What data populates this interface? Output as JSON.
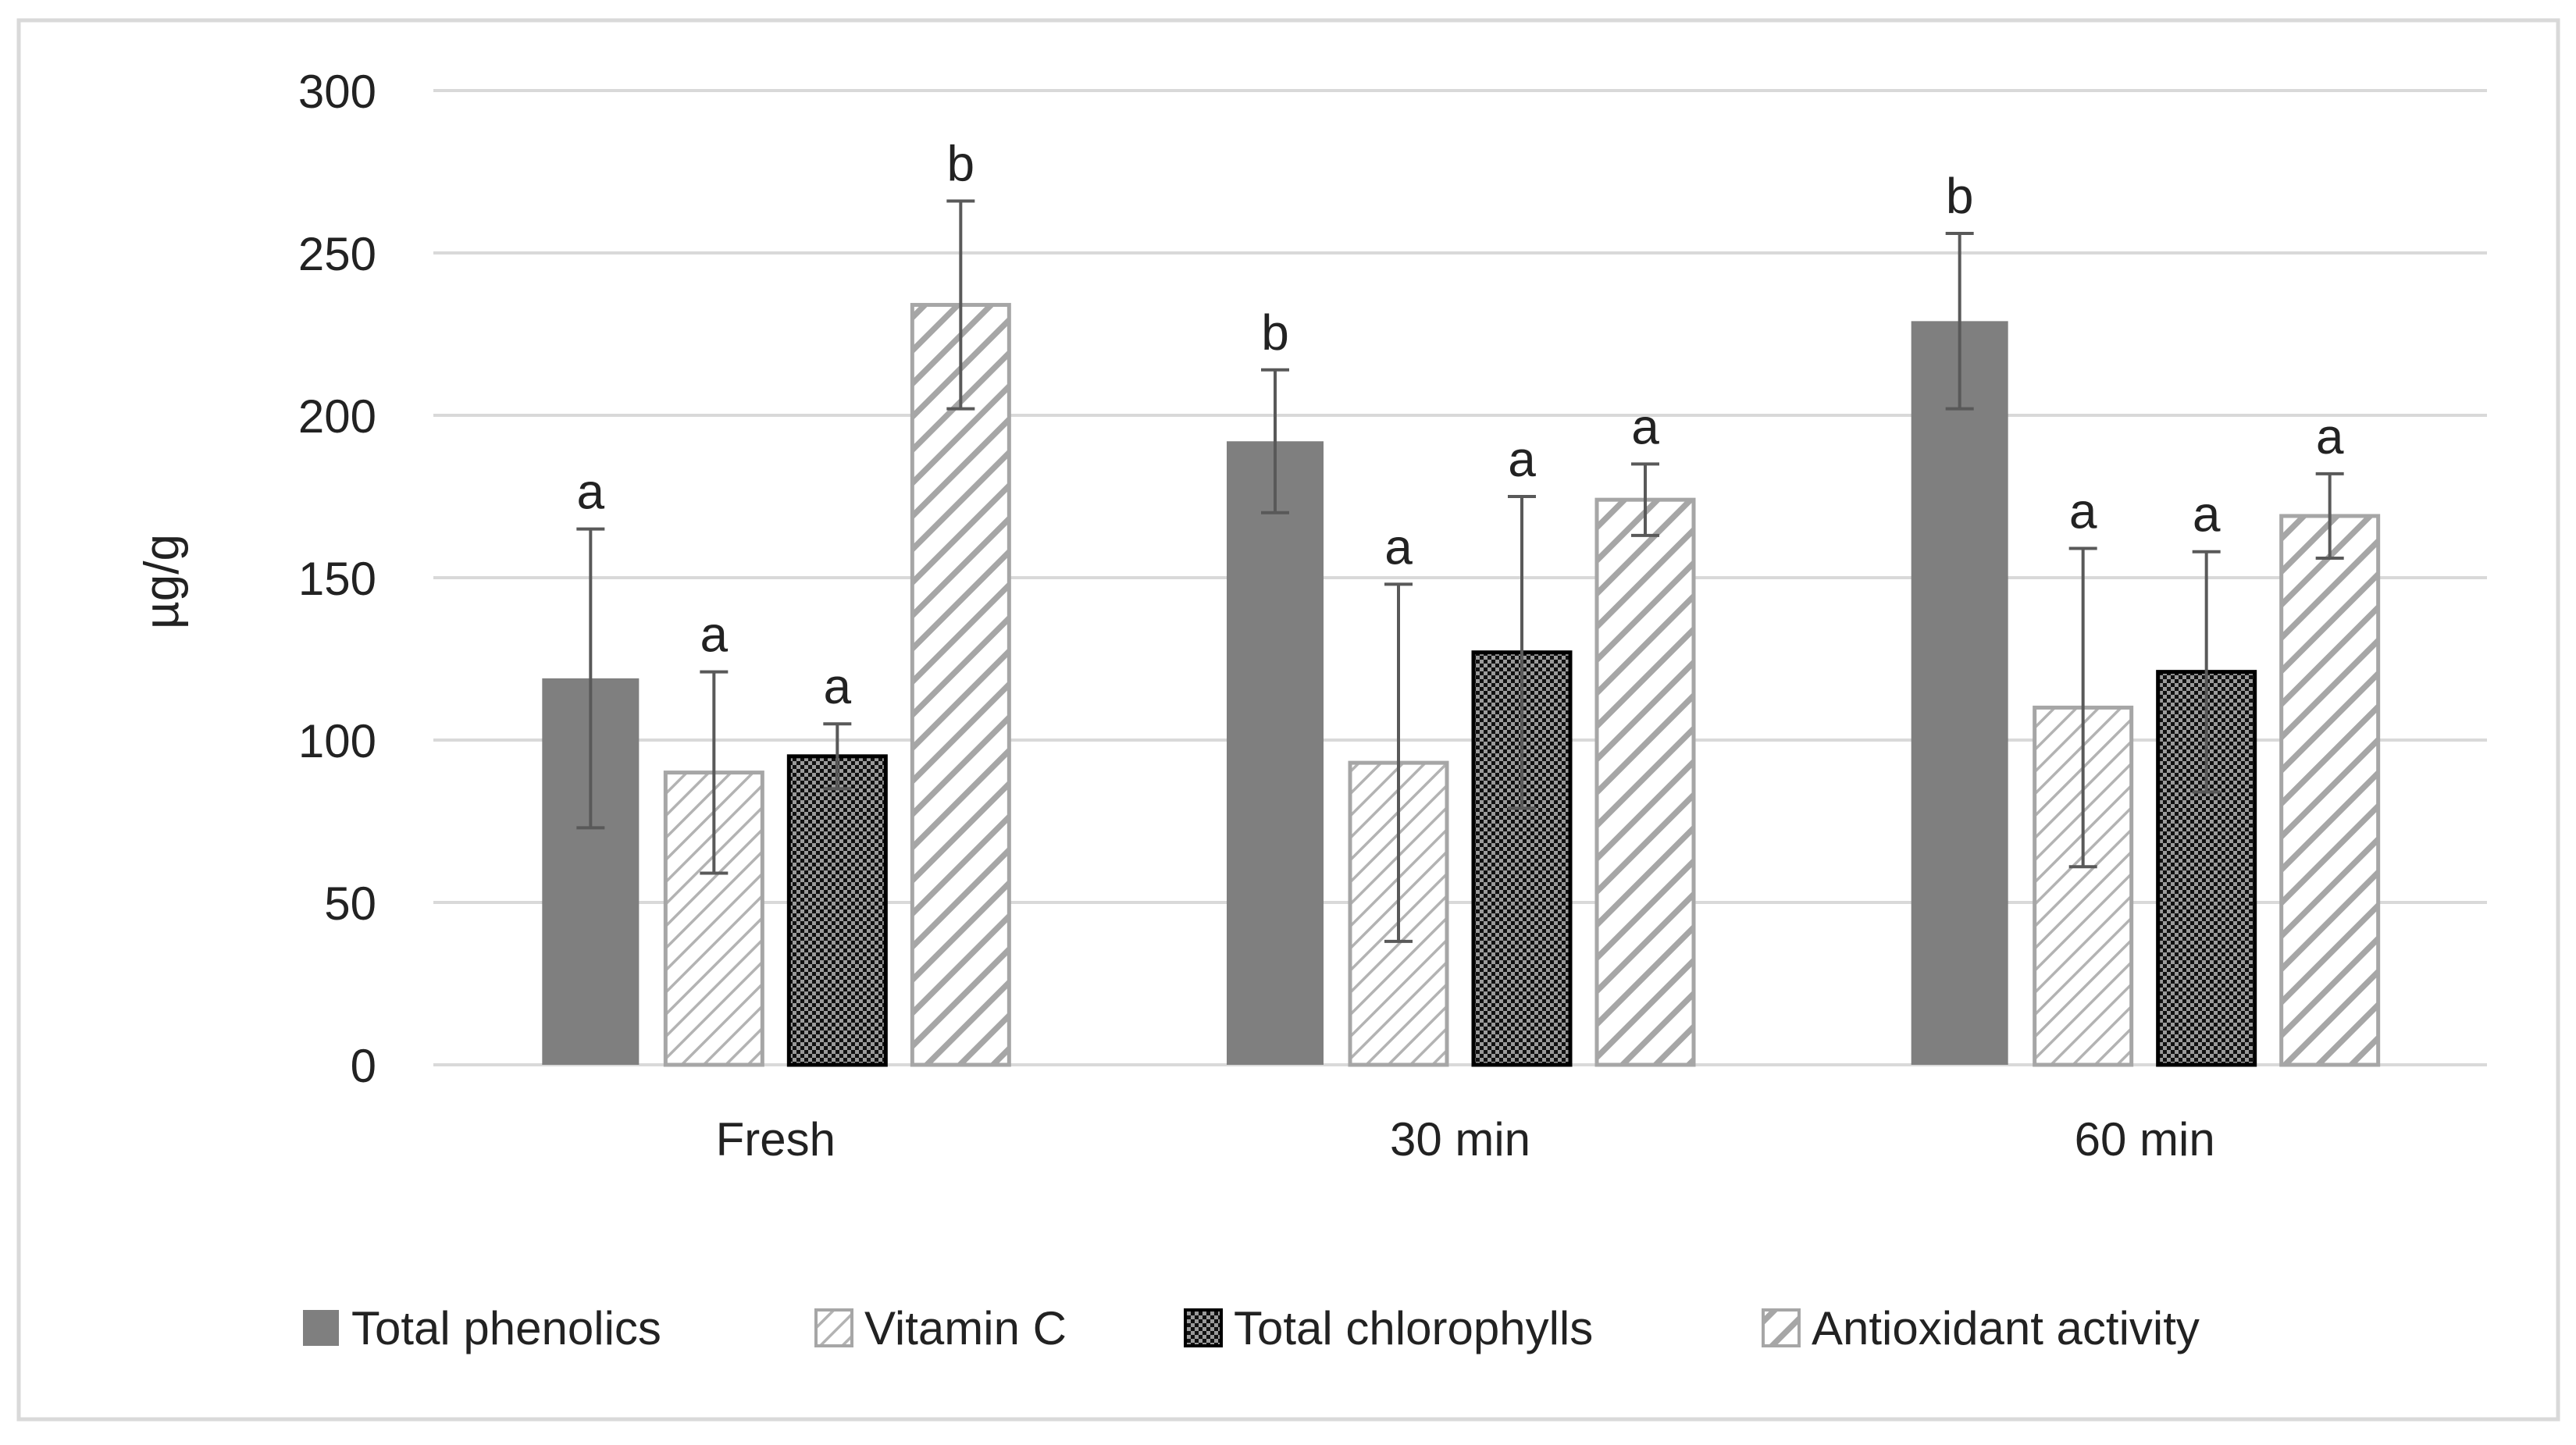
{
  "chart_data": {
    "type": "bar",
    "title": "",
    "xlabel": "",
    "ylabel": "µg/g",
    "ylim": [
      0,
      300
    ],
    "yticks": [
      "0",
      "50",
      "100",
      "150",
      "200",
      "250",
      "300"
    ],
    "grid": true,
    "legend_position": "bottom",
    "categories": [
      "Fresh",
      "30 min",
      "60 min"
    ],
    "series": [
      {
        "name": "Total phenolics",
        "pattern": "solid",
        "color": "#7f7f7f",
        "values": [
          119,
          192,
          229
        ],
        "errors": [
          46,
          22,
          27
        ],
        "letters": [
          "a",
          "b",
          "b"
        ]
      },
      {
        "name": "Vitamin C",
        "pattern": "light-diagonal",
        "color": "#a6a6a6",
        "values": [
          90,
          93,
          110
        ],
        "errors": [
          31,
          55,
          49
        ],
        "letters": [
          "a",
          "a",
          "a"
        ]
      },
      {
        "name": "Total chlorophylls",
        "pattern": "checker",
        "color": "#000000",
        "values": [
          95,
          127,
          121
        ],
        "errors": [
          10,
          48,
          37
        ],
        "letters": [
          "a",
          "a",
          "a"
        ]
      },
      {
        "name": "Antioxidant activity",
        "pattern": "wide-diagonal",
        "color": "#a6a6a6",
        "values": [
          234,
          174,
          169
        ],
        "errors": [
          32,
          11,
          13
        ],
        "letters": [
          "b",
          "a",
          "a"
        ]
      }
    ]
  }
}
